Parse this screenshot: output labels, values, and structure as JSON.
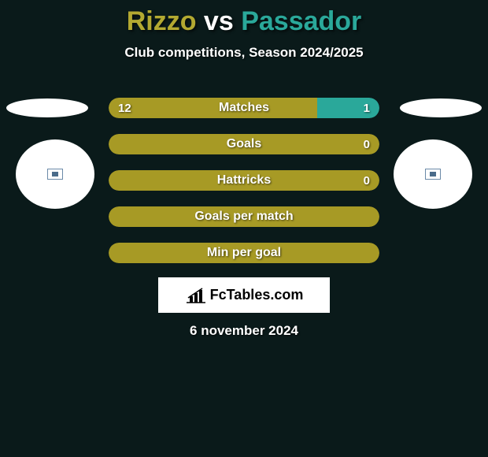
{
  "title": {
    "left": "Rizzo",
    "vs": "vs",
    "right": "Passador",
    "left_color": "#b3a931",
    "vs_color": "#ffffff",
    "right_color": "#2aa89a"
  },
  "subtitle": "Club competitions, Season 2024/2025",
  "colors": {
    "left": "#a79a25",
    "right": "#2aa89a",
    "background": "#0a1a1a"
  },
  "rows": [
    {
      "label": "Matches",
      "left": "12",
      "right": "1",
      "left_pct": 77,
      "right_pct": 23,
      "show_right_bar": true
    },
    {
      "label": "Goals",
      "left": "",
      "right": "0",
      "left_pct": 100,
      "right_pct": 0,
      "show_right_bar": false
    },
    {
      "label": "Hattricks",
      "left": "",
      "right": "0",
      "left_pct": 100,
      "right_pct": 0,
      "show_right_bar": false
    },
    {
      "label": "Goals per match",
      "left": "",
      "right": "",
      "left_pct": 100,
      "right_pct": 0,
      "show_right_bar": false
    },
    {
      "label": "Min per goal",
      "left": "",
      "right": "",
      "left_pct": 100,
      "right_pct": 0,
      "show_right_bar": false
    }
  ],
  "logo": {
    "brand": "FcTables.com"
  },
  "date": "6 november 2024"
}
